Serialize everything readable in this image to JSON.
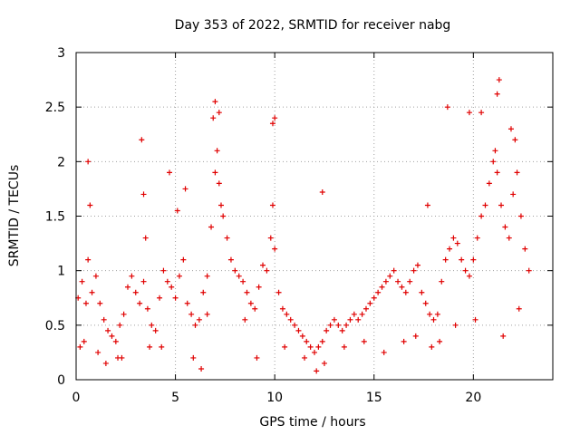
{
  "chart_data": {
    "type": "scatter",
    "title": "Day 353 of 2022, SRMTID for receiver nabg",
    "xlabel": "GPS time / hours",
    "ylabel": "SRMTID / TECUs",
    "xlim": [
      0,
      24
    ],
    "ylim": [
      0,
      3
    ],
    "x_ticks": [
      "0",
      "5",
      "10",
      "15",
      "20"
    ],
    "y_ticks": [
      "0",
      "0.5",
      "1",
      "1.5",
      "2",
      "2.5",
      "3"
    ],
    "grid": true,
    "marker": "plus",
    "color": "#e00000",
    "series": [
      {
        "name": "SRMTID",
        "x": [
          0.1,
          0.3,
          0.5,
          0.6,
          0.8,
          1.0,
          1.2,
          1.4,
          1.6,
          1.8,
          2.0,
          2.2,
          2.4,
          2.6,
          2.8,
          3.0,
          3.2,
          3.4,
          3.5,
          3.6,
          3.8,
          4.0,
          4.2,
          4.4,
          4.6,
          4.8,
          5.0,
          5.2,
          5.4,
          5.6,
          5.8,
          6.0,
          6.2,
          6.4,
          6.6,
          6.8,
          7.0,
          7.1,
          7.2,
          7.3,
          7.4,
          7.6,
          7.8,
          8.0,
          8.2,
          8.4,
          8.6,
          8.8,
          9.0,
          9.2,
          9.4,
          9.6,
          9.8,
          9.9,
          10.0,
          10.2,
          10.4,
          10.6,
          10.8,
          11.0,
          11.2,
          11.4,
          11.6,
          11.8,
          12.0,
          12.2,
          12.4,
          12.6,
          12.8,
          13.0,
          13.2,
          13.4,
          13.6,
          13.8,
          14.0,
          14.2,
          14.4,
          14.6,
          14.8,
          15.0,
          15.2,
          15.4,
          15.6,
          15.8,
          16.0,
          16.2,
          16.4,
          16.6,
          16.8,
          17.0,
          17.2,
          17.4,
          17.6,
          17.8,
          18.0,
          18.2,
          18.4,
          18.6,
          18.8,
          19.0,
          19.2,
          19.4,
          19.6,
          19.8,
          20.0,
          20.2,
          20.4,
          20.6,
          20.8,
          21.0,
          21.1,
          21.2,
          21.4,
          21.6,
          21.8,
          22.0,
          22.2,
          22.4,
          22.6,
          22.8,
          0.2,
          0.6,
          0.7,
          1.5,
          2.3,
          3.3,
          3.4,
          4.7,
          5.1,
          5.5,
          6.9,
          7.0,
          7.2,
          9.9,
          10.0,
          12.4,
          17.7,
          18.7,
          19.8,
          20.4,
          21.2,
          21.3,
          21.9,
          22.1,
          0.4,
          1.1,
          2.1,
          3.7,
          4.3,
          5.9,
          6.3,
          6.6,
          8.5,
          9.1,
          10.5,
          11.5,
          12.1,
          12.5,
          13.5,
          14.5,
          15.5,
          16.5,
          17.1,
          17.9,
          18.3,
          19.1,
          20.1,
          21.5,
          22.3
        ],
        "y": [
          0.75,
          0.9,
          0.7,
          1.1,
          0.8,
          0.95,
          0.7,
          0.55,
          0.45,
          0.4,
          0.35,
          0.5,
          0.6,
          0.85,
          0.95,
          0.8,
          0.7,
          0.9,
          1.3,
          0.65,
          0.5,
          0.45,
          0.75,
          1.0,
          0.9,
          0.85,
          0.75,
          0.95,
          1.1,
          0.7,
          0.6,
          0.5,
          0.55,
          0.8,
          0.95,
          1.4,
          1.9,
          2.1,
          1.8,
          1.6,
          1.5,
          1.3,
          1.1,
          1.0,
          0.95,
          0.9,
          0.8,
          0.7,
          0.65,
          0.85,
          1.05,
          1.0,
          1.3,
          1.6,
          1.2,
          0.8,
          0.65,
          0.6,
          0.55,
          0.5,
          0.45,
          0.4,
          0.35,
          0.3,
          0.25,
          0.3,
          0.35,
          0.45,
          0.5,
          0.55,
          0.5,
          0.45,
          0.5,
          0.55,
          0.6,
          0.55,
          0.6,
          0.65,
          0.7,
          0.75,
          0.8,
          0.85,
          0.9,
          0.95,
          1.0,
          0.9,
          0.85,
          0.8,
          0.9,
          1.0,
          1.05,
          0.8,
          0.7,
          0.6,
          0.55,
          0.6,
          0.9,
          1.1,
          1.2,
          1.3,
          1.25,
          1.1,
          1.0,
          0.95,
          1.1,
          1.3,
          1.5,
          1.6,
          1.8,
          2.0,
          2.1,
          1.9,
          1.6,
          1.4,
          1.3,
          1.7,
          1.9,
          1.5,
          1.2,
          1.0,
          0.3,
          2.0,
          1.6,
          0.15,
          0.2,
          2.2,
          1.7,
          1.9,
          1.55,
          1.75,
          2.4,
          2.55,
          2.45,
          2.35,
          2.4,
          1.72,
          1.6,
          2.5,
          2.45,
          2.45,
          2.62,
          2.75,
          2.3,
          2.2,
          0.35,
          0.25,
          0.2,
          0.3,
          0.3,
          0.2,
          0.1,
          0.6,
          0.55,
          0.2,
          0.3,
          0.2,
          0.08,
          0.15,
          0.3,
          0.35,
          0.25,
          0.35,
          0.4,
          0.3,
          0.35,
          0.5,
          0.55,
          0.4,
          0.65
        ]
      }
    ]
  }
}
